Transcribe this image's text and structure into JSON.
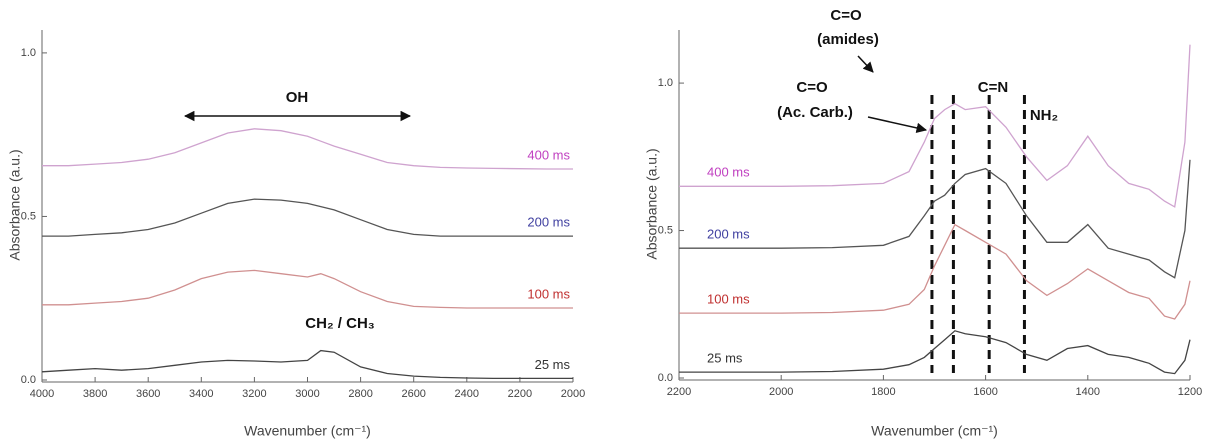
{
  "chart_data": [
    {
      "type": "line",
      "x_label": "Wavenumber (cm⁻¹)",
      "y_label": "Absorbance (a.u.)",
      "xlim": [
        4000,
        2000
      ],
      "ylim": [
        0,
        1.07
      ],
      "xticks": [
        4000,
        3800,
        3600,
        3400,
        3200,
        3000,
        2800,
        2600,
        2400,
        2200,
        2000
      ],
      "yticks": [
        {
          "value": 0,
          "label": "0.0"
        },
        {
          "value": 0.5,
          "label": "0.5"
        },
        {
          "value": 1,
          "label": "1.0"
        }
      ],
      "x": [
        4000,
        3900,
        3800,
        3700,
        3600,
        3500,
        3400,
        3300,
        3200,
        3100,
        3000,
        2950,
        2900,
        2800,
        2700,
        2600,
        2500,
        2400,
        2300,
        2200,
        2100,
        2000
      ],
      "series": [
        {
          "name": "400 ms",
          "color": "#cfa3cf",
          "label_color": "#c040c0",
          "values": [
            0.655,
            0.655,
            0.66,
            0.665,
            0.675,
            0.695,
            0.725,
            0.755,
            0.768,
            0.762,
            0.745,
            0.73,
            0.715,
            0.69,
            0.665,
            0.655,
            0.65,
            0.648,
            0.647,
            0.646,
            0.645,
            0.645
          ]
        },
        {
          "name": "200 ms",
          "color": "#555555",
          "label_color": "#4040a0",
          "values": [
            0.44,
            0.44,
            0.445,
            0.45,
            0.46,
            0.48,
            0.51,
            0.54,
            0.553,
            0.55,
            0.54,
            0.53,
            0.52,
            0.49,
            0.46,
            0.445,
            0.44,
            0.44,
            0.44,
            0.44,
            0.44,
            0.44
          ]
        },
        {
          "name": "100 ms",
          "color": "#d09090",
          "label_color": "#c03030",
          "values": [
            0.23,
            0.23,
            0.235,
            0.24,
            0.25,
            0.275,
            0.31,
            0.33,
            0.335,
            0.325,
            0.315,
            0.325,
            0.31,
            0.27,
            0.24,
            0.225,
            0.222,
            0.22,
            0.22,
            0.22,
            0.22,
            0.22
          ]
        },
        {
          "name": "25 ms",
          "color": "#444444",
          "label_color": "#333333",
          "values": [
            0.025,
            0.03,
            0.035,
            0.03,
            0.035,
            0.045,
            0.055,
            0.06,
            0.058,
            0.055,
            0.06,
            0.09,
            0.085,
            0.04,
            0.02,
            0.012,
            0.008,
            0.006,
            0.005,
            0.005,
            0.005,
            0.005
          ]
        }
      ],
      "annotations": [
        "OH",
        "CH₂ / CH₃"
      ]
    },
    {
      "type": "line",
      "x_label": "Wavenumber (cm⁻¹)",
      "y_label": "Absorbance (a.u.)",
      "xlim": [
        2200,
        1200
      ],
      "ylim": [
        0,
        1.18
      ],
      "xticks": [
        2200,
        2000,
        1800,
        1600,
        1400,
        1200
      ],
      "yticks": [
        {
          "value": 0,
          "label": "0.0"
        },
        {
          "value": 0.5,
          "label": "0.5"
        },
        {
          "value": 1,
          "label": "1.0"
        }
      ],
      "x": [
        2200,
        2100,
        2000,
        1900,
        1800,
        1750,
        1720,
        1700,
        1680,
        1660,
        1640,
        1600,
        1560,
        1520,
        1480,
        1440,
        1400,
        1360,
        1320,
        1280,
        1250,
        1230,
        1210,
        1200
      ],
      "series": [
        {
          "name": "400 ms",
          "color": "#cfa3cf",
          "label_color": "#c040c0",
          "values": [
            0.65,
            0.65,
            0.65,
            0.652,
            0.66,
            0.7,
            0.8,
            0.88,
            0.91,
            0.93,
            0.91,
            0.92,
            0.85,
            0.75,
            0.67,
            0.72,
            0.82,
            0.72,
            0.66,
            0.64,
            0.6,
            0.58,
            0.8,
            1.13
          ]
        },
        {
          "name": "200 ms",
          "color": "#555555",
          "label_color": "#4040a0",
          "values": [
            0.44,
            0.44,
            0.44,
            0.442,
            0.45,
            0.48,
            0.55,
            0.6,
            0.62,
            0.66,
            0.69,
            0.71,
            0.66,
            0.55,
            0.46,
            0.46,
            0.52,
            0.44,
            0.42,
            0.4,
            0.36,
            0.34,
            0.5,
            0.74
          ]
        },
        {
          "name": "100 ms",
          "color": "#d09090",
          "label_color": "#c03030",
          "values": [
            0.22,
            0.22,
            0.22,
            0.222,
            0.23,
            0.25,
            0.3,
            0.38,
            0.45,
            0.52,
            0.5,
            0.46,
            0.42,
            0.33,
            0.28,
            0.32,
            0.37,
            0.33,
            0.29,
            0.27,
            0.21,
            0.2,
            0.25,
            0.33
          ]
        },
        {
          "name": "25 ms",
          "color": "#444444",
          "label_color": "#333333",
          "values": [
            0.02,
            0.02,
            0.02,
            0.022,
            0.03,
            0.045,
            0.07,
            0.1,
            0.13,
            0.16,
            0.15,
            0.14,
            0.12,
            0.08,
            0.06,
            0.1,
            0.11,
            0.08,
            0.07,
            0.05,
            0.02,
            0.015,
            0.06,
            0.13
          ]
        }
      ],
      "vlines": [
        1705,
        1663,
        1593,
        1524
      ],
      "annotations": [
        "C=O",
        "(amides)",
        "C=O",
        "(Ac. Carb.)",
        "C=N",
        "NH₂"
      ]
    }
  ]
}
